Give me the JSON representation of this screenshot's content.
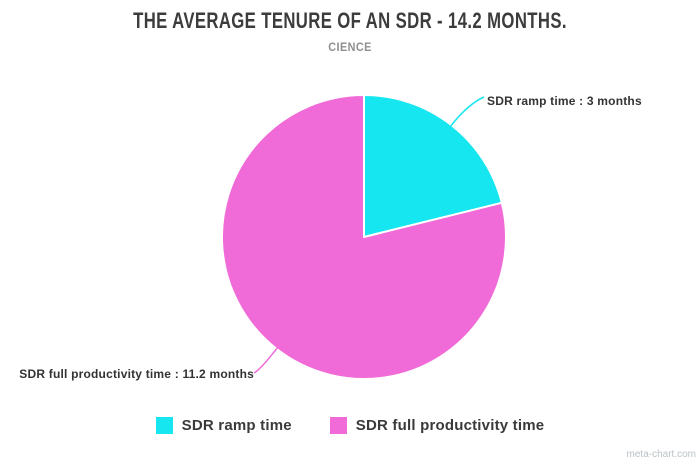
{
  "chart_data": {
    "type": "pie",
    "title": "THE AVERAGE TENURE OF AN SDR - 14.2 MONTHS.",
    "subtitle": "CIENCE",
    "unit": "months",
    "total": 14.2,
    "start_angle_deg": 0,
    "direction": "clockwise",
    "legend_position": "bottom",
    "slices": [
      {
        "label": "SDR ramp time",
        "value": 3,
        "percent": 21.1,
        "color": "#16e6ef",
        "callout": "SDR ramp time : 3 months"
      },
      {
        "label": "SDR full productivity time",
        "value": 11.2,
        "percent": 78.9,
        "color": "#f06ad8",
        "callout": "SDR full productivity time : 11.2 months"
      }
    ]
  },
  "watermark": "meta-chart.com",
  "colors": {
    "title": "#3c3c3c",
    "subtitle": "#8f8f8f",
    "callout_text": "#333333",
    "slice_border": "#ffffff",
    "watermark": "#b9c2c6",
    "background": "#ffffff"
  }
}
